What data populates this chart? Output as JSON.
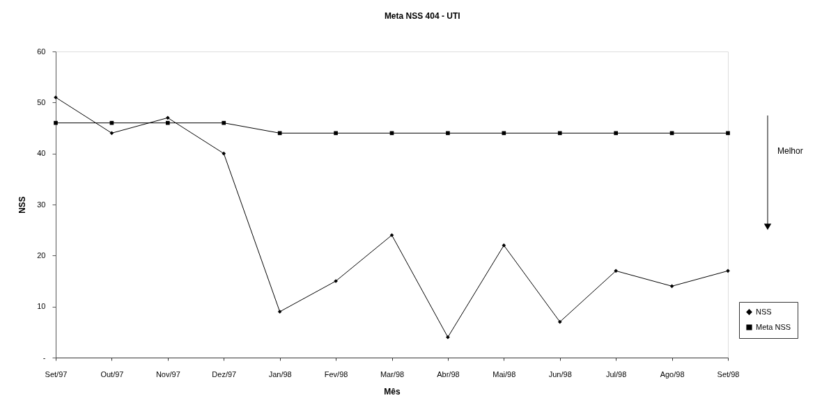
{
  "chart_data": {
    "type": "line",
    "title": "Meta NSS 404 - UTI",
    "xlabel": "Mês",
    "ylabel": "NSS",
    "categories": [
      "Set/97",
      "Out/97",
      "Nov/97",
      "Dez/97",
      "Jan/98",
      "Fev/98",
      "Mar/98",
      "Abr/98",
      "Mai/98",
      "Jun/98",
      "Jul/98",
      "Ago/98",
      "Set/98"
    ],
    "series": [
      {
        "name": "NSS",
        "color": "#000000",
        "marker": "diamond",
        "values": [
          51,
          44,
          47,
          40,
          9,
          15,
          24,
          4,
          22,
          7,
          17,
          14,
          17
        ]
      },
      {
        "name": "Meta NSS",
        "color": "#000000",
        "marker": "square",
        "values": [
          46,
          46,
          46,
          46,
          44,
          44,
          44,
          44,
          44,
          44,
          44,
          44,
          44
        ]
      }
    ],
    "ylim": [
      0,
      60
    ],
    "yticks": [
      {
        "value": 0,
        "label": "-"
      },
      10,
      20,
      30,
      40,
      50,
      60
    ],
    "legend": "bottom right",
    "annotations": [
      "Melhor"
    ]
  }
}
